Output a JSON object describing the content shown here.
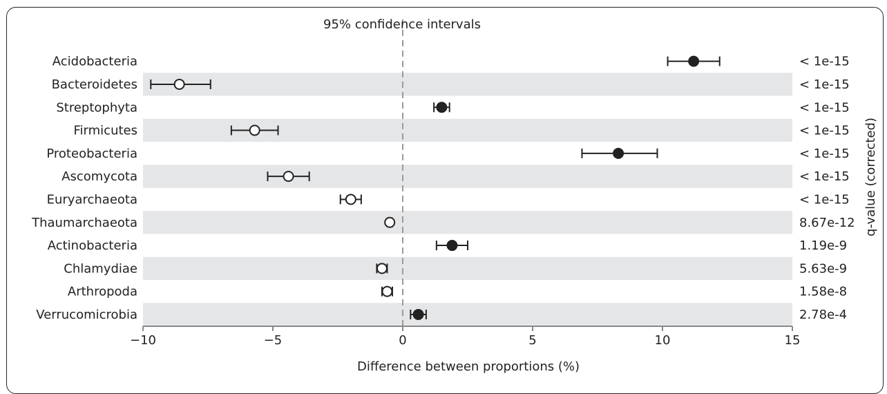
{
  "chart_data": {
    "type": "scatter",
    "title": "95% confidence intervals",
    "xlabel": "Difference between proportions (%)",
    "right_axis_label": "q-value (corrected)",
    "xlim": [
      -10,
      15
    ],
    "xticks": [
      "−10",
      "−5",
      "0",
      "5",
      "10",
      "15"
    ],
    "xtick_values": [
      -10,
      -5,
      0,
      5,
      10,
      15
    ],
    "reference_line": 0,
    "rows": [
      {
        "category": "Acidobacteria",
        "value": 11.2,
        "ci_low": 10.2,
        "ci_high": 12.2,
        "q_value": "< 1e-15",
        "marker": "filled"
      },
      {
        "category": "Bacteroidetes",
        "value": -8.6,
        "ci_low": -9.7,
        "ci_high": -7.4,
        "q_value": "< 1e-15",
        "marker": "open"
      },
      {
        "category": "Streptophyta",
        "value": 1.5,
        "ci_low": 1.2,
        "ci_high": 1.8,
        "q_value": "< 1e-15",
        "marker": "filled"
      },
      {
        "category": "Firmicutes",
        "value": -5.7,
        "ci_low": -6.6,
        "ci_high": -4.8,
        "q_value": "< 1e-15",
        "marker": "open"
      },
      {
        "category": "Proteobacteria",
        "value": 8.3,
        "ci_low": 6.9,
        "ci_high": 9.8,
        "q_value": "< 1e-15",
        "marker": "filled"
      },
      {
        "category": "Ascomycota",
        "value": -4.4,
        "ci_low": -5.2,
        "ci_high": -3.6,
        "q_value": "< 1e-15",
        "marker": "open"
      },
      {
        "category": "Euryarchaeota",
        "value": -2.0,
        "ci_low": -2.4,
        "ci_high": -1.6,
        "q_value": "< 1e-15",
        "marker": "open"
      },
      {
        "category": "Thaumarchaeota",
        "value": -0.5,
        "ci_low": -0.6,
        "ci_high": -0.4,
        "q_value": "8.67e-12",
        "marker": "open"
      },
      {
        "category": "Actinobacteria",
        "value": 1.9,
        "ci_low": 1.3,
        "ci_high": 2.5,
        "q_value": "1.19e-9",
        "marker": "filled"
      },
      {
        "category": "Chlamydiae",
        "value": -0.8,
        "ci_low": -1.0,
        "ci_high": -0.6,
        "q_value": "5.63e-9",
        "marker": "open"
      },
      {
        "category": "Arthropoda",
        "value": -0.6,
        "ci_low": -0.8,
        "ci_high": -0.4,
        "q_value": "1.58e-8",
        "marker": "open"
      },
      {
        "category": "Verrucomicrobia",
        "value": 0.6,
        "ci_low": 0.3,
        "ci_high": 0.9,
        "q_value": "2.78e-4",
        "marker": "filled"
      }
    ],
    "colors": {
      "band": "#e5e6e8",
      "mark": "#222222",
      "zero_line": "#999999",
      "axis": "#888888"
    }
  }
}
